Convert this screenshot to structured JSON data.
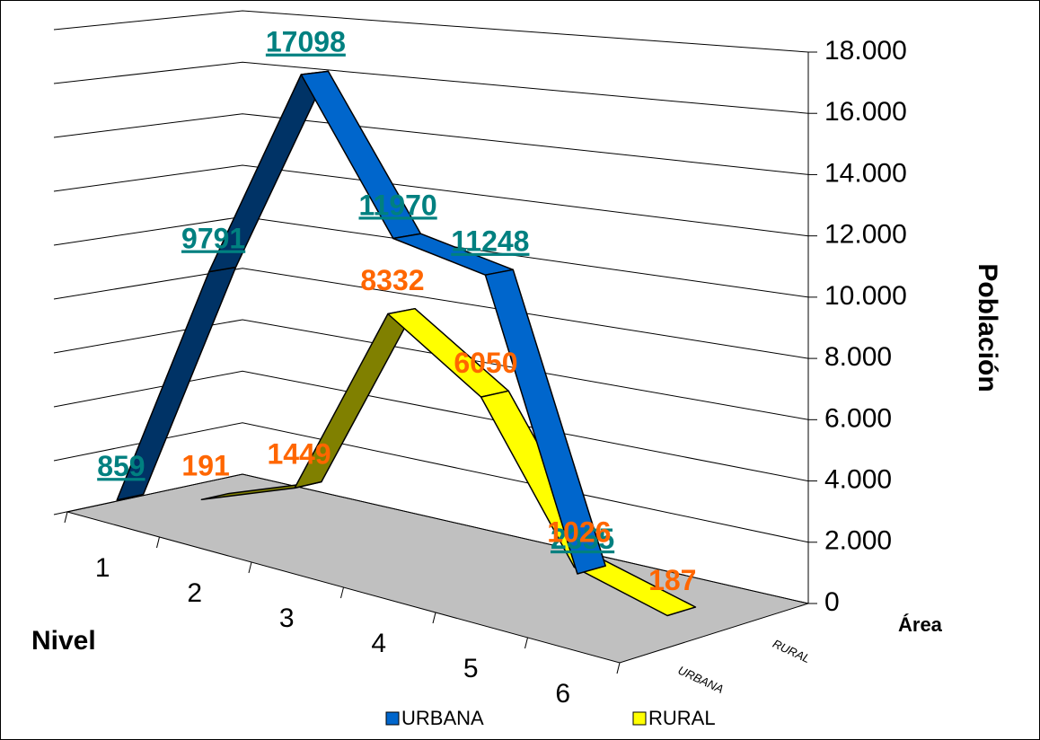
{
  "chart_data": {
    "type": "line3d",
    "categories": [
      "1",
      "2",
      "3",
      "4",
      "5",
      "6"
    ],
    "series": [
      {
        "name": "URBANA",
        "color": "#0066cc",
        "shade_color": "#003366",
        "label_color": "#008080",
        "values": [
          859,
          9791,
          17098,
          11970,
          11248,
          2355
        ]
      },
      {
        "name": "RURAL",
        "color": "#ffff00",
        "shade_color": "#808000",
        "label_color": "#ff6600",
        "values": [
          191,
          1449,
          8332,
          6050,
          1026,
          187
        ]
      }
    ],
    "ylim": [
      0,
      18000
    ],
    "yticks": [
      0,
      {
        "value": 2000,
        "label": "2.000"
      },
      {
        "value": 4000,
        "label": "4.000"
      },
      {
        "value": 6000,
        "label": "6.000"
      },
      {
        "value": 8000,
        "label": "8.000"
      },
      {
        "value": 10000,
        "label": "10.000"
      },
      {
        "value": 12000,
        "label": "12.000"
      },
      {
        "value": 14000,
        "label": "14.000"
      },
      {
        "value": 16000,
        "label": "16.000"
      },
      {
        "value": 18000,
        "label": "18.000"
      }
    ],
    "y_label": "Población",
    "x_label": "Nivel",
    "z_label": "Área",
    "grid": true,
    "floor_color": "#c0c0c0",
    "legend": "bottom"
  }
}
